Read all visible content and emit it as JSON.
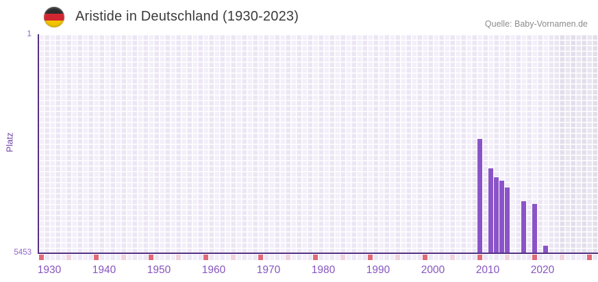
{
  "header": {
    "title": "Aristide in Deutschland (1930-2023)",
    "source": "Quelle: Baby-Vornamen.de",
    "flag_icon": "germany-flag-icon"
  },
  "chart_data": {
    "type": "bar",
    "title": "Aristide in Deutschland (1930-2023)",
    "xlabel": "",
    "ylabel": "Platz",
    "y_axis": {
      "top_label": "1",
      "bottom_label": "5453",
      "min": 1,
      "max": 5453,
      "inverted": true
    },
    "x_range": [
      1928,
      2030
    ],
    "x_ticks": [
      "1930",
      "1940",
      "1950",
      "1960",
      "1970",
      "1980",
      "1990",
      "2000",
      "2010",
      "2020"
    ],
    "grid": true,
    "legend": "none",
    "series": [
      {
        "name": "Platz",
        "points": [
          {
            "year": 2008,
            "rank": 2607
          },
          {
            "year": 2010,
            "rank": 3337
          },
          {
            "year": 2011,
            "rank": 3559
          },
          {
            "year": 2012,
            "rank": 3645
          },
          {
            "year": 2013,
            "rank": 3816
          },
          {
            "year": 2016,
            "rank": 4158
          },
          {
            "year": 2018,
            "rank": 4226
          },
          {
            "year": 2020,
            "rank": 5259
          }
        ]
      }
    ],
    "future_region": {
      "start_year": 2022
    },
    "timeline_strip": {
      "red_years_ending": 8,
      "pink_years_ending": 3
    }
  },
  "colors": {
    "bar": "#8a54c8",
    "axis": "#523081",
    "tick_label": "#8655c0",
    "y_label": "#8e63c9",
    "y_title": "#6f42a5",
    "title_text": "#3a3a3a",
    "source_text": "#8b8b8b",
    "strip_red": "#e06b77",
    "strip_pink": "#f0d2dd",
    "flag_black": "#2b2b2b",
    "flag_red": "#d22730",
    "flag_gold": "#f2c400",
    "grid_light": "#f3eff9",
    "grid_dark": "#ece6f4",
    "future_light": "#e9e5f1",
    "future_dark": "#e2deeb"
  }
}
